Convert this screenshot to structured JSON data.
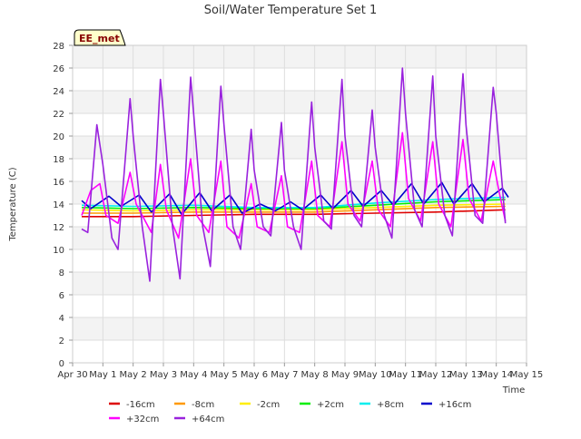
{
  "chart_data": {
    "type": "line",
    "title": "Soil/Water Temperature Set 1",
    "xlabel": "Time",
    "ylabel": "Temperature (C)",
    "annotation": "EE_met",
    "xlim": [
      0,
      15
    ],
    "ylim": [
      0,
      28
    ],
    "x_ticks": [
      {
        "v": 0,
        "label": "Apr 30"
      },
      {
        "v": 1,
        "label": "May 1"
      },
      {
        "v": 2,
        "label": "May 2"
      },
      {
        "v": 3,
        "label": "May 3"
      },
      {
        "v": 4,
        "label": "May 4"
      },
      {
        "v": 5,
        "label": "May 5"
      },
      {
        "v": 6,
        "label": "May 6"
      },
      {
        "v": 7,
        "label": "May 7"
      },
      {
        "v": 8,
        "label": "May 8"
      },
      {
        "v": 9,
        "label": "May 9"
      },
      {
        "v": 10,
        "label": "May 10"
      },
      {
        "v": 11,
        "label": "May 11"
      },
      {
        "v": 12,
        "label": "May 12"
      },
      {
        "v": 13,
        "label": "May 13"
      },
      {
        "v": 14,
        "label": "May 14"
      },
      {
        "v": 15,
        "label": "May 15"
      }
    ],
    "y_ticks": [
      0,
      2,
      4,
      6,
      8,
      10,
      12,
      14,
      16,
      18,
      20,
      22,
      24,
      26,
      28
    ],
    "grid": true,
    "legend_position": "bottom",
    "series": [
      {
        "name": "-16cm",
        "color": "#dd0000",
        "x": [
          0.3,
          2,
          4,
          6,
          8,
          10,
          12,
          14.3
        ],
        "y": [
          12.9,
          12.9,
          13.0,
          13.1,
          13.1,
          13.2,
          13.3,
          13.5
        ]
      },
      {
        "name": "-8cm",
        "color": "#ff9900",
        "x": [
          0.3,
          2,
          4,
          6,
          8,
          10,
          12,
          14.3
        ],
        "y": [
          13.2,
          13.2,
          13.3,
          13.3,
          13.3,
          13.5,
          13.7,
          13.8
        ]
      },
      {
        "name": "-2cm",
        "color": "#ffee00",
        "x": [
          0.3,
          2,
          4,
          6,
          8,
          10,
          12,
          14.3
        ],
        "y": [
          13.5,
          13.4,
          13.5,
          13.5,
          13.5,
          13.7,
          13.9,
          14.0
        ]
      },
      {
        "name": "+2cm",
        "color": "#00ee00",
        "x": [
          0.3,
          2,
          4,
          6,
          8,
          10,
          12,
          14.3
        ],
        "y": [
          13.7,
          13.6,
          13.7,
          13.6,
          13.6,
          13.9,
          14.2,
          14.4
        ]
      },
      {
        "name": "+8cm",
        "color": "#00eeee",
        "x": [
          0.3,
          2,
          4,
          6,
          8,
          10,
          12,
          14.3
        ],
        "y": [
          13.9,
          13.8,
          13.9,
          13.7,
          13.7,
          14.1,
          14.4,
          14.6
        ]
      },
      {
        "name": "+16cm",
        "color": "#0000cc",
        "x": [
          0.3,
          0.6,
          1.2,
          1.6,
          2.2,
          2.6,
          3.2,
          3.6,
          4.2,
          4.6,
          5.2,
          5.6,
          6.2,
          6.7,
          7.2,
          7.6,
          8.2,
          8.6,
          9.2,
          9.6,
          10.2,
          10.6,
          11.2,
          11.6,
          12.2,
          12.6,
          13.2,
          13.6,
          14.2,
          14.4
        ],
        "y": [
          14.3,
          13.6,
          14.7,
          13.8,
          14.8,
          13.3,
          14.9,
          13.1,
          15.0,
          13.4,
          14.8,
          13.2,
          14.0,
          13.4,
          14.2,
          13.5,
          14.8,
          13.6,
          15.2,
          13.8,
          15.2,
          13.9,
          15.8,
          14.0,
          15.9,
          14.0,
          15.8,
          14.2,
          15.4,
          14.6
        ]
      },
      {
        "name": "+32cm",
        "color": "#ff00ff",
        "x": [
          0.3,
          0.6,
          0.9,
          1.1,
          1.5,
          1.9,
          2.1,
          2.6,
          2.9,
          3.1,
          3.5,
          3.9,
          4.1,
          4.5,
          4.9,
          5.1,
          5.5,
          5.9,
          6.1,
          6.5,
          6.9,
          7.1,
          7.5,
          7.9,
          8.1,
          8.5,
          8.9,
          9.1,
          9.5,
          9.9,
          10.1,
          10.5,
          10.9,
          11.1,
          11.5,
          11.9,
          12.1,
          12.5,
          12.9,
          13.1,
          13.5,
          13.9,
          14.1,
          14.3
        ],
        "y": [
          13.0,
          15.2,
          15.8,
          13.0,
          12.3,
          16.8,
          14.0,
          11.5,
          17.5,
          13.5,
          11.0,
          18.0,
          13.0,
          11.5,
          17.8,
          12.0,
          11.0,
          15.8,
          12.0,
          11.5,
          16.5,
          12.0,
          11.5,
          17.8,
          13.0,
          12.0,
          19.5,
          14.0,
          12.5,
          17.8,
          13.5,
          12.0,
          20.3,
          14.5,
          12.5,
          19.5,
          14.0,
          12.0,
          19.7,
          14.5,
          12.5,
          17.8,
          15.0,
          12.5
        ]
      },
      {
        "name": "+64cm",
        "color": "#9922dd",
        "x": [
          0.3,
          0.5,
          0.8,
          1.0,
          1.3,
          1.5,
          1.9,
          2.0,
          2.3,
          2.55,
          2.9,
          3.0,
          3.3,
          3.55,
          3.9,
          4.0,
          4.3,
          4.55,
          4.9,
          5.0,
          5.3,
          5.55,
          5.9,
          6.0,
          6.3,
          6.55,
          6.9,
          7.0,
          7.3,
          7.55,
          7.9,
          8.0,
          8.3,
          8.55,
          8.9,
          9.0,
          9.3,
          9.55,
          9.9,
          10.0,
          10.3,
          10.55,
          10.9,
          11.0,
          11.3,
          11.55,
          11.9,
          12.0,
          12.3,
          12.55,
          12.9,
          13.0,
          13.3,
          13.55,
          13.9,
          14.0,
          14.3
        ],
        "y": [
          11.8,
          11.5,
          21.0,
          17.5,
          11.0,
          10.0,
          23.3,
          20.0,
          12.0,
          7.2,
          25.0,
          22.0,
          12.0,
          7.4,
          25.2,
          22.0,
          12.0,
          8.5,
          24.4,
          21.0,
          12.0,
          10.0,
          20.6,
          17.0,
          12.0,
          11.2,
          21.2,
          17.0,
          12.0,
          10.0,
          23.0,
          19.0,
          12.5,
          11.8,
          25.0,
          20.0,
          13.0,
          12.0,
          22.3,
          19.0,
          13.0,
          11.0,
          26.0,
          22.0,
          13.5,
          12.0,
          25.3,
          20.0,
          13.0,
          11.2,
          25.5,
          21.0,
          13.0,
          12.3,
          24.3,
          22.0,
          12.3
        ]
      }
    ]
  }
}
